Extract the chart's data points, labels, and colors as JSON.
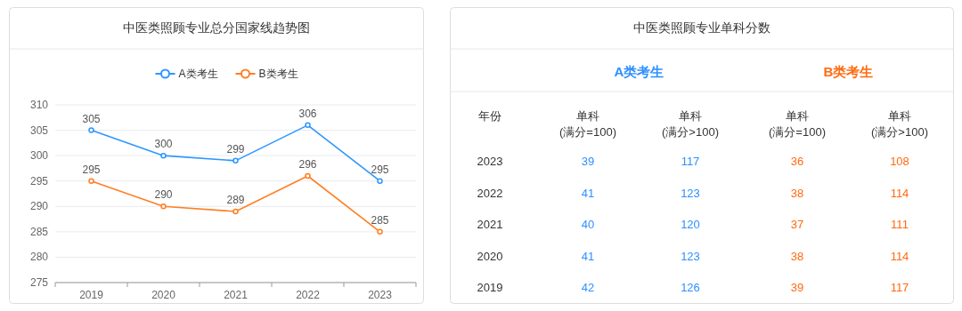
{
  "chart_data": [
    {
      "type": "line",
      "title": "中医类照顾专业总分国家线趋势图",
      "categories": [
        "2019",
        "2020",
        "2021",
        "2022",
        "2023"
      ],
      "series": [
        {
          "name": "A类考生",
          "color": "#2e96ff",
          "values": [
            305,
            300,
            299,
            306,
            295
          ]
        },
        {
          "name": "B类考生",
          "color": "#ff7f24",
          "values": [
            295,
            290,
            289,
            296,
            285
          ]
        }
      ],
      "ylim": [
        275,
        310
      ],
      "yticks": [
        275,
        280,
        285,
        290,
        295,
        300,
        305,
        310
      ],
      "grid": "y",
      "legend": "top",
      "data_labels": true,
      "marker": "circle"
    },
    {
      "type": "heatmap",
      "title": "中医类照顾专业单科分数",
      "ylabel": "年份",
      "annotations": [
        "A类考生",
        "B类考生"
      ],
      "categories": [
        "单科\n(满分=100)",
        "单科\n(满分>100)",
        "单科\n(满分=100)",
        "单科\n(满分>100)"
      ],
      "y_categories": [
        "2023",
        "2022",
        "2021",
        "2020",
        "2019"
      ],
      "colors": [
        "#2e8fff",
        "#2e8fff",
        "#ff6a10",
        "#ff6a10"
      ],
      "data_labels": true,
      "cells": [
        [
          39,
          117,
          36,
          108
        ],
        [
          41,
          123,
          38,
          114
        ],
        [
          40,
          120,
          37,
          111
        ],
        [
          41,
          123,
          38,
          114
        ],
        [
          42,
          126,
          39,
          117
        ]
      ]
    }
  ]
}
